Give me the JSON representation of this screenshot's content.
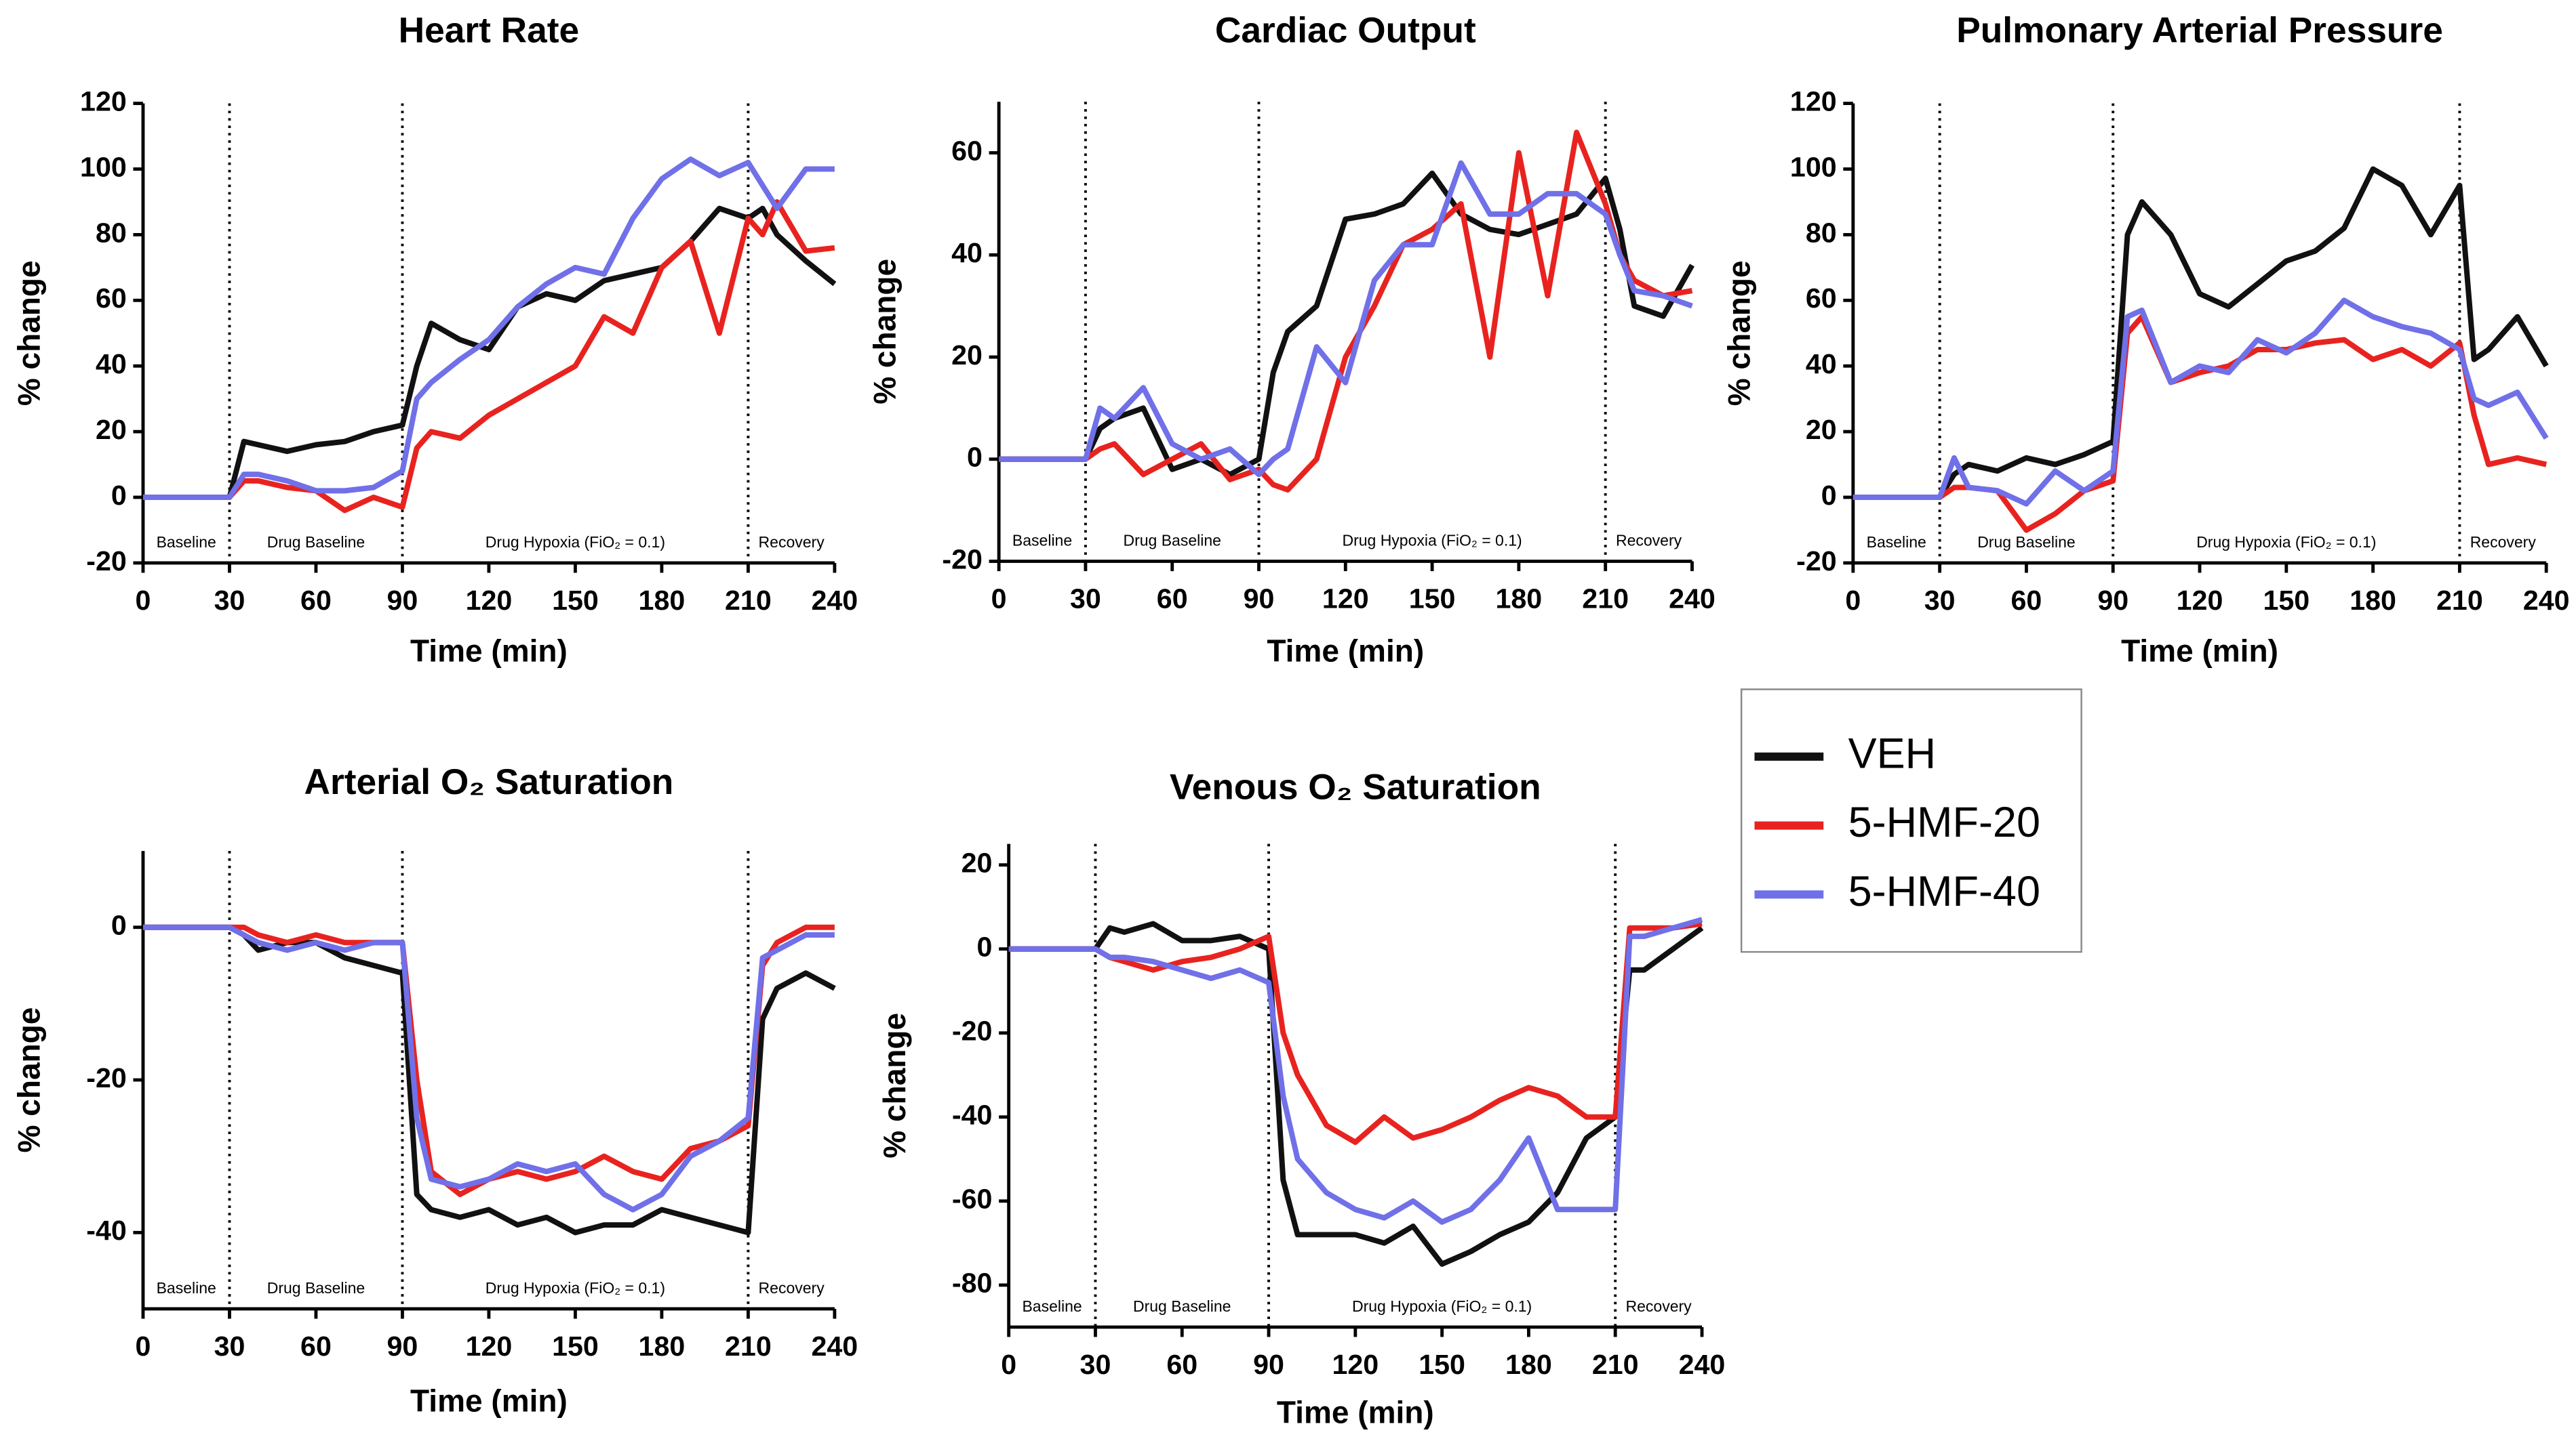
{
  "chart_data": [
    {
      "type": "line",
      "title": "Heart Rate",
      "xlabel": "Time (min)",
      "ylabel": "% change",
      "x": [
        0,
        30,
        35,
        40,
        50,
        60,
        70,
        80,
        90,
        95,
        100,
        110,
        120,
        130,
        140,
        150,
        160,
        170,
        180,
        190,
        200,
        210,
        215,
        220,
        230,
        240
      ],
      "xlim": [
        0,
        240
      ],
      "xticks": [
        0,
        30,
        60,
        90,
        120,
        150,
        180,
        210,
        240
      ],
      "ylim": [
        -20,
        120
      ],
      "yticks": [
        -20,
        0,
        20,
        40,
        60,
        80,
        100,
        120
      ],
      "phases": [
        {
          "label": "Baseline",
          "start": 0,
          "end": 30
        },
        {
          "label": "Drug Baseline",
          "start": 30,
          "end": 90
        },
        {
          "label": "Drug Hypoxia (FiO₂ = 0.1)",
          "start": 90,
          "end": 210
        },
        {
          "label": "Recovery",
          "start": 210,
          "end": 240
        }
      ],
      "series": [
        {
          "name": "VEH",
          "color": "#111111",
          "values": [
            0,
            0,
            17,
            16,
            14,
            16,
            17,
            20,
            22,
            40,
            53,
            48,
            45,
            58,
            62,
            60,
            66,
            68,
            70,
            78,
            88,
            85,
            88,
            80,
            72,
            65
          ]
        },
        {
          "name": "5-HMF-20",
          "color": "#e8231f",
          "values": [
            0,
            0,
            5,
            5,
            3,
            2,
            -4,
            0,
            -3,
            15,
            20,
            18,
            25,
            30,
            35,
            40,
            55,
            50,
            70,
            78,
            50,
            85,
            80,
            90,
            75,
            76
          ]
        },
        {
          "name": "5-HMF-40",
          "color": "#7070e8",
          "values": [
            0,
            0,
            7,
            7,
            5,
            2,
            2,
            3,
            8,
            30,
            35,
            42,
            48,
            58,
            65,
            70,
            68,
            85,
            97,
            103,
            98,
            102,
            95,
            88,
            100,
            100
          ]
        }
      ]
    },
    {
      "type": "line",
      "title": "Cardiac Output",
      "xlabel": "Time (min)",
      "ylabel": "% change",
      "x": [
        0,
        30,
        35,
        40,
        50,
        60,
        70,
        80,
        90,
        95,
        100,
        110,
        120,
        130,
        140,
        150,
        160,
        170,
        180,
        190,
        200,
        210,
        215,
        220,
        230,
        240
      ],
      "xlim": [
        0,
        240
      ],
      "xticks": [
        0,
        30,
        60,
        90,
        120,
        150,
        180,
        210,
        240
      ],
      "ylim": [
        -20,
        70
      ],
      "yticks": [
        -20,
        0,
        20,
        40,
        60
      ],
      "phases": [
        {
          "label": "Baseline",
          "start": 0,
          "end": 30
        },
        {
          "label": "Drug Baseline",
          "start": 30,
          "end": 90
        },
        {
          "label": "Drug Hypoxia (FiO₂ = 0.1)",
          "start": 90,
          "end": 210
        },
        {
          "label": "Recovery",
          "start": 210,
          "end": 240
        }
      ],
      "series": [
        {
          "name": "VEH",
          "color": "#111111",
          "values": [
            0,
            0,
            6,
            8,
            10,
            -2,
            0,
            -3,
            0,
            17,
            25,
            30,
            47,
            48,
            50,
            56,
            48,
            45,
            44,
            46,
            48,
            55,
            45,
            30,
            28,
            38
          ]
        },
        {
          "name": "5-HMF-20",
          "color": "#e8231f",
          "values": [
            0,
            0,
            2,
            3,
            -3,
            0,
            3,
            -4,
            -2,
            -5,
            -6,
            0,
            20,
            30,
            42,
            45,
            50,
            20,
            60,
            32,
            64,
            50,
            40,
            35,
            32,
            33
          ]
        },
        {
          "name": "5-HMF-40",
          "color": "#7070e8",
          "values": [
            0,
            0,
            10,
            8,
            14,
            3,
            0,
            2,
            -3,
            0,
            2,
            22,
            15,
            35,
            42,
            42,
            58,
            48,
            48,
            52,
            52,
            48,
            40,
            33,
            32,
            30
          ]
        }
      ]
    },
    {
      "type": "line",
      "title": "Pulmonary Arterial Pressure",
      "xlabel": "Time (min)",
      "ylabel": "% change",
      "x": [
        0,
        30,
        35,
        40,
        50,
        60,
        70,
        80,
        90,
        95,
        100,
        110,
        120,
        130,
        140,
        150,
        160,
        170,
        180,
        190,
        200,
        210,
        215,
        220,
        230,
        240
      ],
      "xlim": [
        0,
        240
      ],
      "xticks": [
        0,
        30,
        60,
        90,
        120,
        150,
        180,
        210,
        240
      ],
      "ylim": [
        -20,
        120
      ],
      "yticks": [
        -20,
        0,
        20,
        40,
        60,
        80,
        100,
        120
      ],
      "phases": [
        {
          "label": "Baseline",
          "start": 0,
          "end": 30
        },
        {
          "label": "Drug Baseline",
          "start": 30,
          "end": 90
        },
        {
          "label": "Drug Hypoxia (FiO₂ = 0.1)",
          "start": 90,
          "end": 210
        },
        {
          "label": "Recovery",
          "start": 210,
          "end": 240
        }
      ],
      "series": [
        {
          "name": "VEH",
          "color": "#111111",
          "values": [
            0,
            0,
            7,
            10,
            8,
            12,
            10,
            13,
            17,
            80,
            90,
            80,
            62,
            58,
            65,
            72,
            75,
            82,
            100,
            95,
            80,
            95,
            42,
            45,
            55,
            40
          ]
        },
        {
          "name": "5-HMF-20",
          "color": "#e8231f",
          "values": [
            0,
            0,
            3,
            3,
            2,
            -10,
            -5,
            2,
            5,
            50,
            55,
            35,
            38,
            40,
            45,
            45,
            47,
            48,
            42,
            45,
            40,
            47,
            25,
            10,
            12,
            10
          ]
        },
        {
          "name": "5-HMF-40",
          "color": "#7070e8",
          "values": [
            0,
            0,
            12,
            3,
            2,
            -2,
            8,
            2,
            8,
            55,
            57,
            35,
            40,
            38,
            48,
            44,
            50,
            60,
            55,
            52,
            50,
            45,
            30,
            28,
            32,
            18
          ]
        }
      ]
    },
    {
      "type": "line",
      "title": "Arterial O₂ Saturation",
      "xlabel": "Time (min)",
      "ylabel": "% change",
      "x": [
        0,
        30,
        35,
        40,
        50,
        60,
        70,
        80,
        90,
        95,
        100,
        110,
        120,
        130,
        140,
        150,
        160,
        170,
        180,
        190,
        200,
        210,
        215,
        220,
        230,
        240
      ],
      "xlim": [
        0,
        240
      ],
      "xticks": [
        0,
        30,
        60,
        90,
        120,
        150,
        180,
        210,
        240
      ],
      "ylim": [
        -50,
        10
      ],
      "yticks": [
        -40,
        -20,
        0
      ],
      "phases": [
        {
          "label": "Baseline",
          "start": 0,
          "end": 30
        },
        {
          "label": "Drug Baseline",
          "start": 30,
          "end": 90
        },
        {
          "label": "Drug Hypoxia (FiO₂ = 0.1)",
          "start": 90,
          "end": 210
        },
        {
          "label": "Recovery",
          "start": 210,
          "end": 240
        }
      ],
      "series": [
        {
          "name": "VEH",
          "color": "#111111",
          "values": [
            0,
            0,
            -1,
            -3,
            -2,
            -2,
            -4,
            -5,
            -6,
            -35,
            -37,
            -38,
            -37,
            -39,
            -38,
            -40,
            -39,
            -39,
            -37,
            -38,
            -39,
            -40,
            -12,
            -8,
            -6,
            -8
          ]
        },
        {
          "name": "5-HMF-20",
          "color": "#e8231f",
          "values": [
            0,
            0,
            0,
            -1,
            -2,
            -1,
            -2,
            -2,
            -2,
            -20,
            -32,
            -35,
            -33,
            -32,
            -33,
            -32,
            -30,
            -32,
            -33,
            -29,
            -28,
            -26,
            -5,
            -2,
            0,
            0
          ]
        },
        {
          "name": "5-HMF-40",
          "color": "#7070e8",
          "values": [
            0,
            0,
            -1,
            -2,
            -3,
            -2,
            -3,
            -2,
            -2,
            -25,
            -33,
            -34,
            -33,
            -31,
            -32,
            -31,
            -35,
            -37,
            -35,
            -30,
            -28,
            -25,
            -4,
            -3,
            -1,
            -1
          ]
        }
      ]
    },
    {
      "type": "line",
      "title": "Venous O₂ Saturation",
      "xlabel": "Time (min)",
      "ylabel": "% change",
      "x": [
        0,
        30,
        35,
        40,
        50,
        60,
        70,
        80,
        90,
        95,
        100,
        110,
        120,
        130,
        140,
        150,
        160,
        170,
        180,
        190,
        200,
        210,
        215,
        220,
        230,
        240
      ],
      "xlim": [
        0,
        240
      ],
      "xticks": [
        0,
        30,
        60,
        90,
        120,
        150,
        180,
        210,
        240
      ],
      "ylim": [
        -90,
        25
      ],
      "yticks": [
        -80,
        -60,
        -40,
        -20,
        0,
        20
      ],
      "phases": [
        {
          "label": "Baseline",
          "start": 0,
          "end": 30
        },
        {
          "label": "Drug Baseline",
          "start": 30,
          "end": 90
        },
        {
          "label": "Drug Hypoxia (FiO₂ = 0.1)",
          "start": 90,
          "end": 210
        },
        {
          "label": "Recovery",
          "start": 210,
          "end": 240
        }
      ],
      "series": [
        {
          "name": "VEH",
          "color": "#111111",
          "values": [
            0,
            0,
            5,
            4,
            6,
            2,
            2,
            3,
            0,
            -55,
            -68,
            -68,
            -68,
            -70,
            -66,
            -75,
            -72,
            -68,
            -65,
            -58,
            -45,
            -40,
            -5,
            -5,
            0,
            5
          ]
        },
        {
          "name": "5-HMF-20",
          "color": "#e8231f",
          "values": [
            0,
            0,
            -2,
            -3,
            -5,
            -3,
            -2,
            0,
            3,
            -20,
            -30,
            -42,
            -46,
            -40,
            -45,
            -43,
            -40,
            -36,
            -33,
            -35,
            -40,
            -40,
            5,
            5,
            5,
            6
          ]
        },
        {
          "name": "5-HMF-40",
          "color": "#7070e8",
          "values": [
            0,
            0,
            -2,
            -2,
            -3,
            -5,
            -7,
            -5,
            -8,
            -35,
            -50,
            -58,
            -62,
            -64,
            -60,
            -65,
            -62,
            -55,
            -45,
            -62,
            -62,
            -62,
            3,
            3,
            5,
            7
          ]
        }
      ]
    }
  ]
}
